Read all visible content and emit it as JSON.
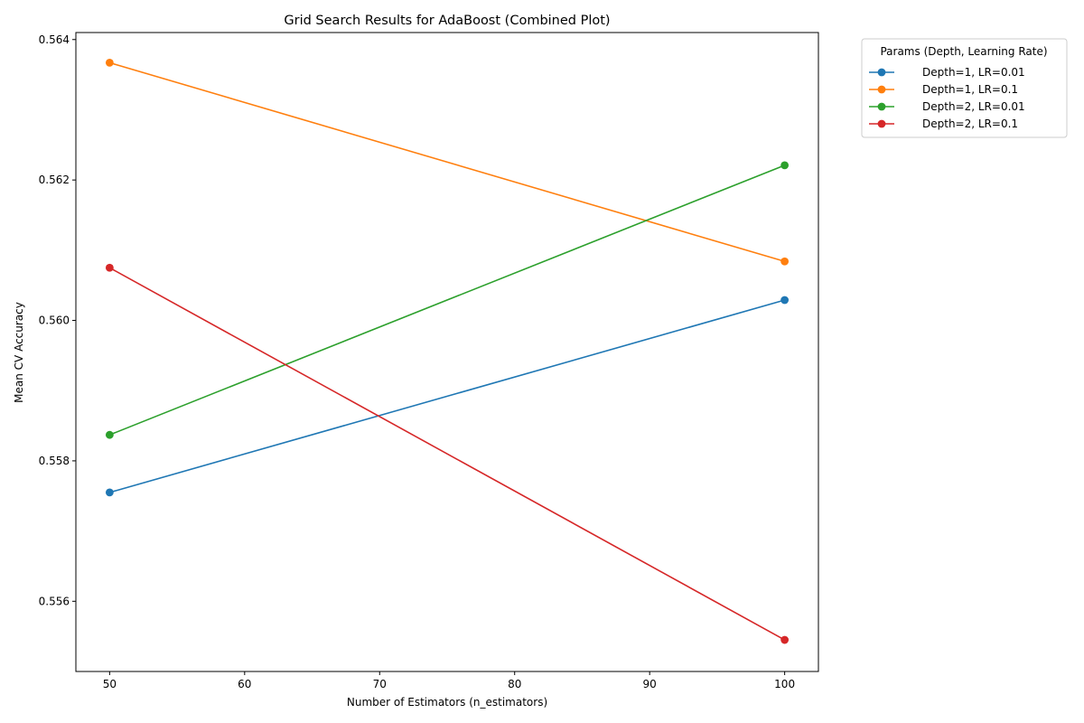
{
  "chart_data": {
    "type": "line",
    "title": "Grid Search Results for AdaBoost (Combined Plot)",
    "xlabel": "Number of Estimators (n_estimators)",
    "ylabel": "Mean CV Accuracy",
    "x": [
      50,
      100
    ],
    "xlim": [
      47.5,
      102.5
    ],
    "ylim": [
      0.555,
      0.5641
    ],
    "xticks": [
      "50",
      "60",
      "70",
      "80",
      "90",
      "100"
    ],
    "xtick_values": [
      50,
      60,
      70,
      80,
      90,
      100
    ],
    "yticks": [
      "0.556",
      "0.558",
      "0.560",
      "0.562",
      "0.564"
    ],
    "ytick_values": [
      0.556,
      0.558,
      0.56,
      0.562,
      0.564
    ],
    "grid": false,
    "legend": {
      "title": "Params (Depth, Learning Rate)",
      "placement": "outside-top-right"
    },
    "series": [
      {
        "name": "Depth=1, LR=0.01",
        "color": "#1f77b4",
        "marker": "circle",
        "values": [
          0.55755,
          0.56029
        ]
      },
      {
        "name": "Depth=1, LR=0.1",
        "color": "#ff7f0e",
        "marker": "circle",
        "values": [
          0.56367,
          0.56084
        ]
      },
      {
        "name": "Depth=2, LR=0.01",
        "color": "#2ca02c",
        "marker": "circle",
        "values": [
          0.55837,
          0.56221
        ]
      },
      {
        "name": "Depth=2, LR=0.1",
        "color": "#d62728",
        "marker": "circle",
        "values": [
          0.56075,
          0.55545
        ]
      }
    ]
  }
}
